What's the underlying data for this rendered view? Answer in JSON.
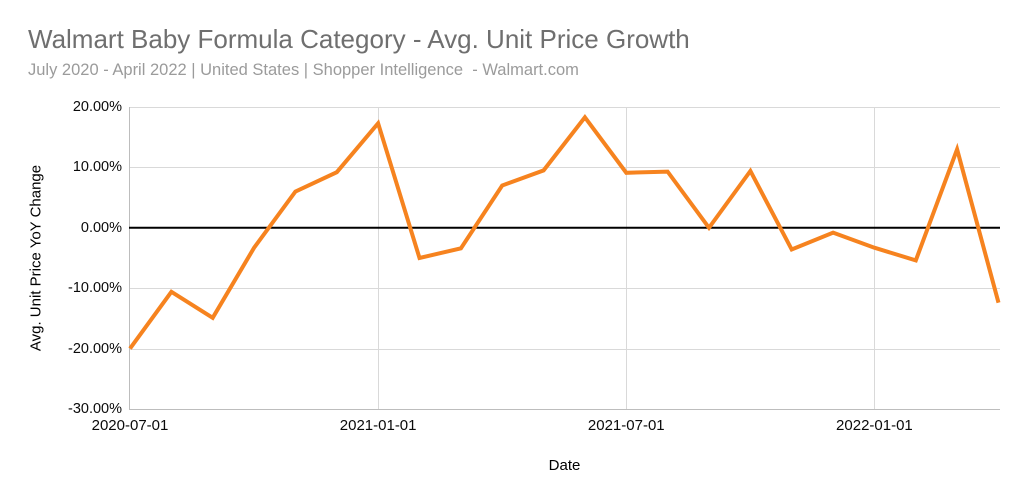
{
  "header": {
    "title": "Walmart Baby Formula Category - Avg. Unit Price Growth",
    "subtitle": "July 2020 - April 2022 | United States | Shopper Intelligence  - Walmart.com"
  },
  "chart_data": {
    "type": "line",
    "title": "Walmart Baby Formula Category - Avg. Unit Price Growth",
    "subtitle": "July 2020 - April 2022 | United States | Shopper Intelligence  - Walmart.com",
    "xlabel": "Date",
    "ylabel": "Avg. Unit Price YoY Change",
    "x": [
      "2020-07-01",
      "2020-08-01",
      "2020-09-01",
      "2020-10-01",
      "2020-11-01",
      "2020-12-01",
      "2021-01-01",
      "2021-02-01",
      "2021-03-01",
      "2021-04-01",
      "2021-05-01",
      "2021-06-01",
      "2021-07-01",
      "2021-08-01",
      "2021-09-01",
      "2021-10-01",
      "2021-11-01",
      "2021-12-01",
      "2022-01-01",
      "2022-02-01",
      "2022-03-01",
      "2022-04-01"
    ],
    "values": [
      -20.0,
      -10.6,
      -14.9,
      -3.3,
      6.0,
      9.2,
      17.3,
      -5.0,
      -3.4,
      7.0,
      9.5,
      18.3,
      9.1,
      9.3,
      0.0,
      9.4,
      -3.6,
      -0.8,
      -3.3,
      -5.4,
      13.0,
      -12.4
    ],
    "value_unit": "percent",
    "series_name": "Avg. Unit Price YoY Change",
    "ylim": [
      -30,
      20
    ],
    "yticks": [
      {
        "label": "20.00%",
        "value": 20
      },
      {
        "label": "10.00%",
        "value": 10
      },
      {
        "label": "0.00%",
        "value": 0
      },
      {
        "label": "-10.00%",
        "value": -10
      },
      {
        "label": "-20.00%",
        "value": -20
      },
      {
        "label": "-30.00%",
        "value": -30
      }
    ],
    "xticks": [
      {
        "label": "2020-07-01",
        "index": 0
      },
      {
        "label": "2021-01-01",
        "index": 6
      },
      {
        "label": "2021-07-01",
        "index": 12
      },
      {
        "label": "2022-01-01",
        "index": 18
      }
    ],
    "grid": {
      "horizontal": true,
      "vertical_at_xticks": true
    },
    "zero_line": true,
    "legend": "none"
  },
  "colors": {
    "line": "#F6831F",
    "gridline": "#D9D9D9",
    "axis_line": "#BDBDBD",
    "zero_line": "#000000",
    "title": "#6F6F6F",
    "subtitle": "#9B9B9B",
    "tick_label": "#0A0A0A",
    "axis_title": "#000000",
    "background": "#FFFFFF"
  }
}
